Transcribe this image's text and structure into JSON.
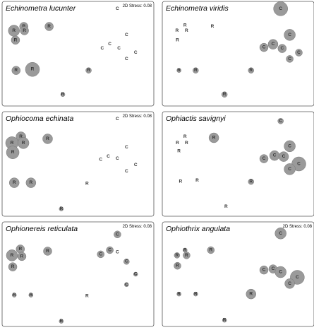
{
  "chart_data": [
    {
      "type": "scatter",
      "title": "Echinometra lucunter",
      "annotation": "2D Stress: 0.08",
      "xlim": [
        0,
        100
      ],
      "ylim": [
        0,
        100
      ],
      "color": "#9a9a9a",
      "labels": [
        "R",
        "R",
        "R",
        "R",
        "R",
        "R",
        "R",
        "R",
        "R",
        "C",
        "C",
        "C",
        "C",
        "C",
        "C",
        "C"
      ],
      "x": [
        14.3,
        7.8,
        14.7,
        8.8,
        31,
        9.2,
        20,
        57,
        40,
        76,
        82,
        71,
        66,
        77,
        88,
        82
      ],
      "y": [
        76,
        72,
        72,
        63,
        76,
        34,
        35,
        34,
        11,
        93,
        68,
        59,
        55,
        55,
        51,
        45
      ],
      "sizes": [
        6,
        8,
        6,
        6,
        6,
        6,
        10,
        4,
        3,
        0,
        0,
        0,
        0,
        0,
        0,
        0
      ]
    },
    {
      "type": "scatter",
      "title": "Echinometra viridis",
      "xlim": [
        0,
        100
      ],
      "ylim": [
        0,
        100
      ],
      "color": "#9a9a9a",
      "labels": [
        "R",
        "R",
        "R",
        "R",
        "R",
        "R",
        "R",
        "R",
        "R",
        "C",
        "C",
        "C",
        "C",
        "C",
        "C",
        "C"
      ],
      "x": [
        9.7,
        15,
        16,
        10,
        33,
        11,
        22,
        58.5,
        41,
        78,
        84,
        73,
        67,
        79,
        90,
        84
      ],
      "y": [
        72,
        77,
        72,
        63,
        76,
        34,
        34,
        34,
        11,
        93,
        68,
        59,
        56,
        55,
        51,
        45
      ],
      "sizes": [
        0,
        0,
        0,
        0,
        0,
        3,
        4,
        4,
        4,
        10,
        8,
        7,
        6,
        6,
        5,
        5
      ]
    },
    {
      "type": "scatter",
      "title": "Ophiocoma echinata",
      "annotation": "2D Stress: 0.08",
      "xlim": [
        0,
        100
      ],
      "ylim": [
        0,
        100
      ],
      "color": "#9a9a9a",
      "labels": [
        "R",
        "R",
        "R",
        "R",
        "R",
        "R",
        "R",
        "R",
        "R",
        "C",
        "C",
        "C",
        "C",
        "C",
        "C",
        "C"
      ],
      "x": [
        12.4,
        6.5,
        14,
        7,
        30,
        8,
        19,
        56,
        39,
        76,
        82,
        70,
        65,
        76,
        88,
        82
      ],
      "y": [
        76,
        70,
        70,
        61,
        74,
        32,
        32,
        31,
        7,
        93,
        66,
        57,
        54,
        55,
        49,
        43
      ],
      "sizes": [
        7,
        9,
        8,
        9,
        7,
        7,
        7,
        0,
        3,
        0,
        0,
        0,
        0,
        0,
        0,
        0
      ]
    },
    {
      "type": "scatter",
      "title": "Ophiactis savignyi",
      "xlim": [
        0,
        100
      ],
      "ylim": [
        0,
        100
      ],
      "color": "#9a9a9a",
      "labels": [
        "R",
        "R",
        "R",
        "R",
        "R",
        "R",
        "R",
        "R",
        "R",
        "C",
        "C",
        "C",
        "C",
        "C",
        "C",
        "C"
      ],
      "x": [
        10,
        15,
        16,
        11,
        34,
        12,
        23,
        58.5,
        42,
        78,
        84,
        74,
        67,
        80,
        90,
        84
      ],
      "y": [
        70,
        76,
        70,
        62,
        75,
        33,
        34,
        33,
        9,
        91,
        67,
        58,
        55,
        57,
        50,
        45
      ],
      "sizes": [
        0,
        0,
        0,
        0,
        7,
        0,
        0,
        4,
        0,
        4,
        8,
        7,
        6,
        7,
        10,
        8
      ]
    },
    {
      "type": "scatter",
      "title": "Ophionereis reticulata",
      "annotation": "2D Stress: 0.08",
      "xlim": [
        0,
        100
      ],
      "ylim": [
        0,
        100
      ],
      "color": "#9a9a9a",
      "labels": [
        "R",
        "R",
        "R",
        "R",
        "R",
        "R",
        "R",
        "R",
        "R",
        "C",
        "C",
        "C",
        "C",
        "C",
        "C",
        "C"
      ],
      "x": [
        12,
        6.5,
        13,
        7,
        30,
        8,
        19,
        56,
        39,
        76,
        71,
        65,
        76,
        82,
        88,
        82
      ],
      "y": [
        74,
        68,
        67,
        57,
        72,
        30,
        30,
        29,
        5,
        88,
        73,
        69,
        71,
        62,
        50,
        40
      ],
      "sizes": [
        6,
        8,
        6,
        6,
        6,
        3,
        3,
        0,
        3,
        5,
        5,
        5,
        0,
        4,
        3,
        3
      ]
    },
    {
      "type": "scatter",
      "title": "Ophiothrix angulata",
      "annotation": "2D Stress: 0.08",
      "xlim": [
        0,
        100
      ],
      "ylim": [
        0,
        100
      ],
      "color": "#9a9a9a",
      "labels": [
        "R",
        "R",
        "R",
        "R",
        "R",
        "R",
        "R",
        "R",
        "R",
        "C",
        "C",
        "C",
        "C",
        "C",
        "C"
      ],
      "x": [
        9.7,
        15,
        16,
        10,
        32,
        11,
        22,
        58.5,
        41,
        78,
        73,
        67,
        78,
        89,
        84
      ],
      "y": [
        68,
        73,
        68,
        58,
        73,
        31,
        31,
        31,
        6,
        89,
        55,
        54,
        52,
        47,
        41
      ],
      "sizes": [
        4,
        3,
        5,
        5,
        5,
        3,
        3,
        7,
        3,
        8,
        6,
        6,
        8,
        10,
        7
      ]
    }
  ]
}
